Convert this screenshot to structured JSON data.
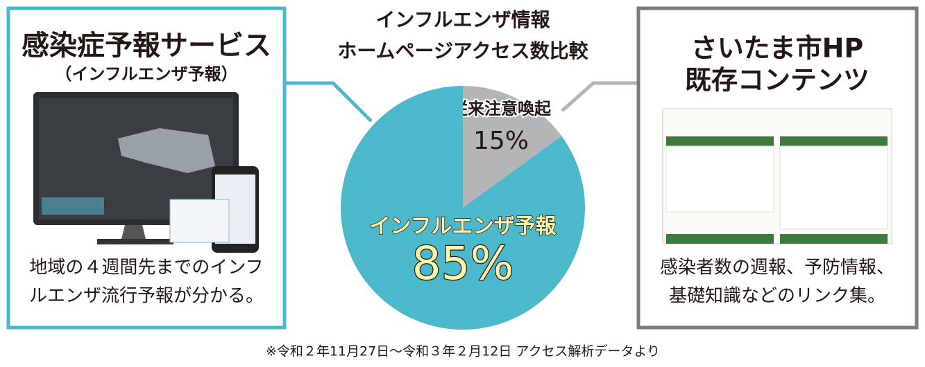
{
  "chart_data": {
    "type": "pie",
    "title": [
      "インフルエンザ情報",
      "ホームページアクセス数比較"
    ],
    "categories": [
      "従来注意喚起",
      "インフルエンザ予報"
    ],
    "values": [
      15,
      85
    ],
    "value_labels": [
      "15%",
      "85%"
    ],
    "colors": [
      "#b4b5b6",
      "#4cb8cb"
    ]
  },
  "left_panel": {
    "title": "感染症予報サービス",
    "subtitle": "（インフルエンザ予報）",
    "description": [
      "地域の４週間先までのインフ",
      "ルエンザ流行予報が分かる。"
    ]
  },
  "right_panel": {
    "title": [
      "さいたま市HP",
      "既存コンテンツ"
    ],
    "description": [
      "感染者数の週報、予防情報、",
      "基礎知識などのリンク集。"
    ]
  },
  "footnote": "※令和２年11月27日～令和３年２月12日 アクセス解析データより"
}
